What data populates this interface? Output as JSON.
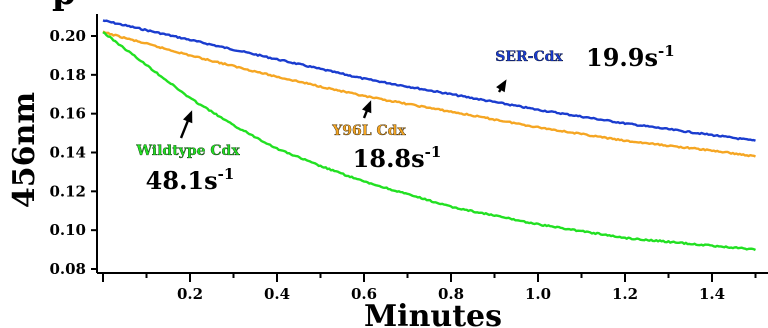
{
  "chart_data": {
    "type": "line",
    "title": "",
    "xlabel": "Minutes",
    "ylabel": "456nm",
    "xlim": [
      0,
      1.5
    ],
    "ylim": [
      0.08,
      0.21
    ],
    "x_ticks": [
      0.2,
      0.4,
      0.6,
      0.8,
      1.0,
      1.2,
      1.4
    ],
    "x_tick_labels": [
      "0.2",
      "0.4",
      "0.6",
      "0.8",
      "1.0",
      "1.2",
      "1.4"
    ],
    "y_ticks": [
      0.08,
      0.1,
      0.12,
      0.14,
      0.16,
      0.18,
      0.2
    ],
    "y_tick_labels": [
      "0.08",
      "0.10",
      "0.12",
      "0.14",
      "0.16",
      "0.18",
      "0.20"
    ],
    "grid": false,
    "legend": "none (series labelled inline with arrows)",
    "series": [
      {
        "name": "SER-Cdx",
        "rate_text": "19.9s",
        "rate_superscript": "-1",
        "color": "#1a3ccf",
        "x": [
          0,
          0.2,
          0.4,
          0.6,
          0.8,
          1.0,
          1.2,
          1.4,
          1.5
        ],
        "y": [
          0.208,
          0.198,
          0.188,
          0.178,
          0.17,
          0.162,
          0.155,
          0.149,
          0.146
        ],
        "label_anchor": [
          0.86,
          0.17
        ]
      },
      {
        "name": "Y96L Cdx",
        "rate_text": "18.8s",
        "rate_superscript": "-1",
        "color": "#f5a623",
        "x": [
          0,
          0.2,
          0.4,
          0.6,
          0.8,
          1.0,
          1.2,
          1.4,
          1.5
        ],
        "y": [
          0.202,
          0.19,
          0.179,
          0.169,
          0.161,
          0.153,
          0.146,
          0.141,
          0.138
        ],
        "label_anchor": [
          0.6,
          0.169
        ]
      },
      {
        "name": "Wildtype Cdx",
        "rate_text": "48.1s",
        "rate_superscript": "-1",
        "color": "#22e022",
        "x": [
          0,
          0.1,
          0.2,
          0.3,
          0.4,
          0.5,
          0.6,
          0.8,
          1.0,
          1.2,
          1.4,
          1.5
        ],
        "y": [
          0.202,
          0.185,
          0.168,
          0.154,
          0.142,
          0.133,
          0.125,
          0.112,
          0.103,
          0.096,
          0.092,
          0.09
        ],
        "label_anchor": [
          0.2,
          0.168
        ]
      }
    ]
  }
}
